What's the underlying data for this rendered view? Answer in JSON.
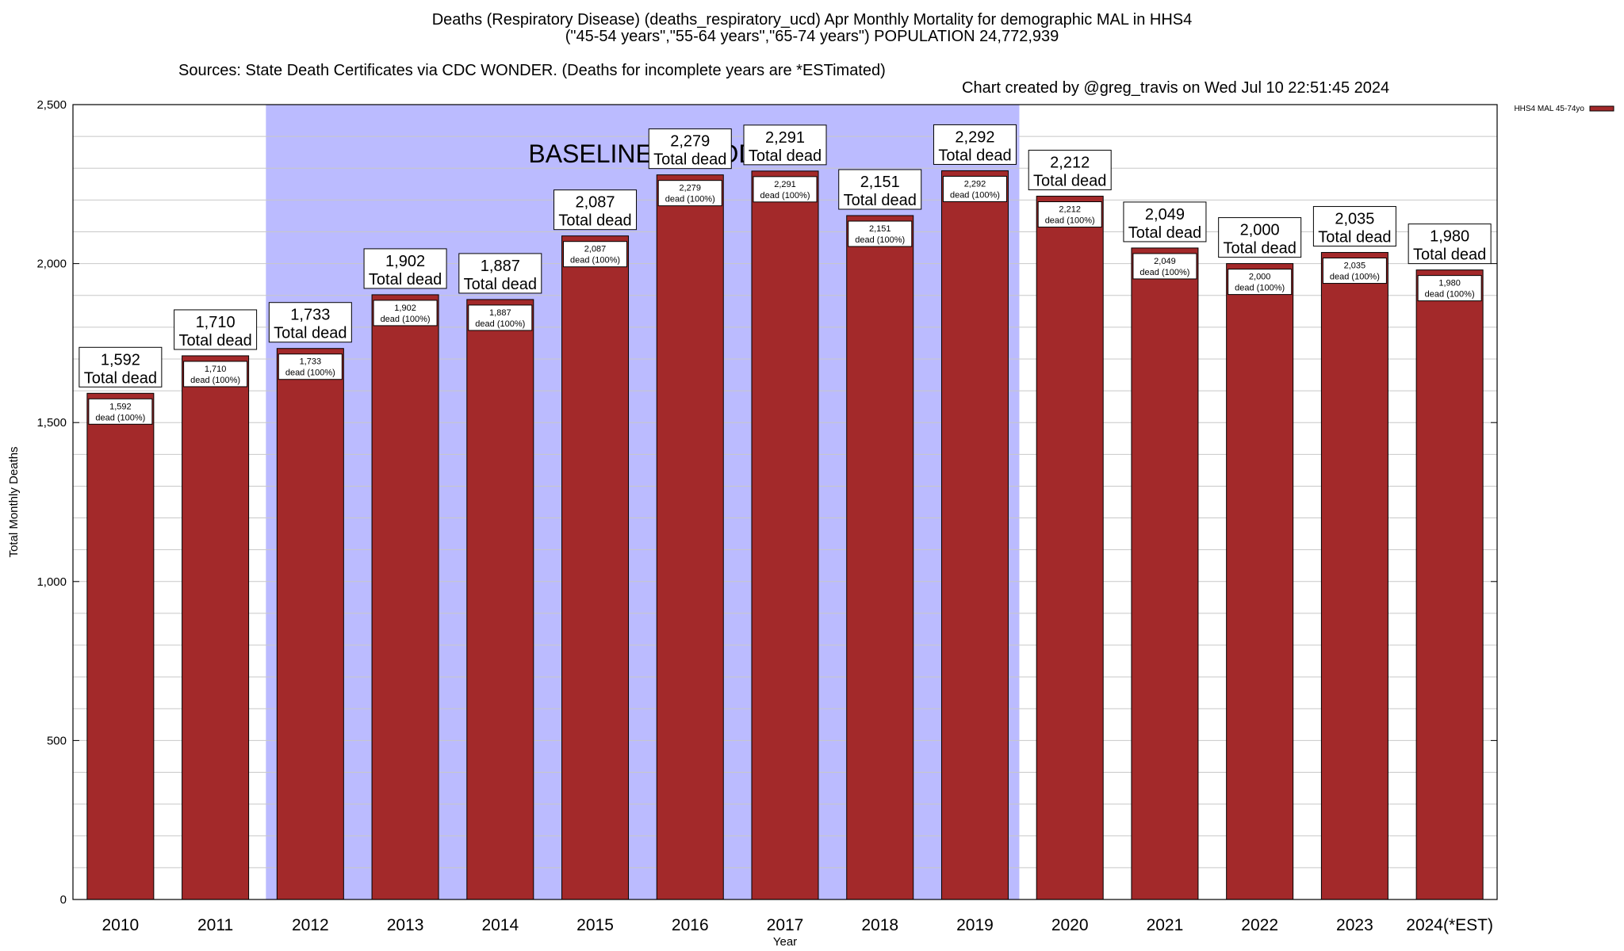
{
  "header": {
    "title_line1": "Deaths (Respiratory Disease) (deaths_respiratory_ucd) Apr Monthly Mortality for demographic MAL in HHS4",
    "title_line2": "(\"45-54 years\",\"55-64 years\",\"65-74 years\") POPULATION 24,772,939",
    "title_line3_left": "Sources: State Death Certificates via CDC WONDER. (Deaths for incomplete years are *ESTimated)",
    "title_line3_right": "Chart created by @greg_travis on Wed Jul 10 22:51:45 2024"
  },
  "colors": {
    "bar": "#a3292a",
    "bar_outline": "#000000",
    "baseline_shading": "#bbbbff",
    "grid": "#c8c8c8"
  },
  "chart_data": {
    "type": "bar",
    "categories": [
      "2010",
      "2011",
      "2012",
      "2013",
      "2014",
      "2015",
      "2016",
      "2017",
      "2018",
      "2019",
      "2020",
      "2021",
      "2022",
      "2023",
      "2024(*EST)"
    ],
    "series": [
      {
        "name": "HHS4 MAL 45-74yo",
        "values": [
          1592,
          1710,
          1733,
          1902,
          1887,
          2087,
          2279,
          2291,
          2151,
          2292,
          2212,
          2049,
          2000,
          2035,
          1980
        ]
      }
    ],
    "total_labels": [
      "1,592",
      "1,710",
      "1,733",
      "1,902",
      "1,887",
      "2,087",
      "2,279",
      "2,291",
      "2,151",
      "2,292",
      "2,212",
      "2,049",
      "2,000",
      "2,035",
      "1,980"
    ],
    "total_suffix": "Total dead",
    "inner_suffix": "dead (100%)",
    "xlabel": "Year",
    "ylabel": "Total Monthly Deaths",
    "ylim": [
      0,
      2500
    ],
    "yticks": [
      0,
      500,
      1000,
      1500,
      2000,
      2500
    ],
    "ytick_labels": [
      "0",
      "500",
      "1,000",
      "1,500",
      "2,000",
      "2,500"
    ],
    "minor_grid_step": 100,
    "grid": true,
    "legend": {
      "placement": "top-right",
      "label": "HHS4 MAL 45-74yo"
    },
    "annotation": {
      "text": "BASELINE PERIOD",
      "from_category": "2012",
      "to_category": "2019"
    }
  }
}
